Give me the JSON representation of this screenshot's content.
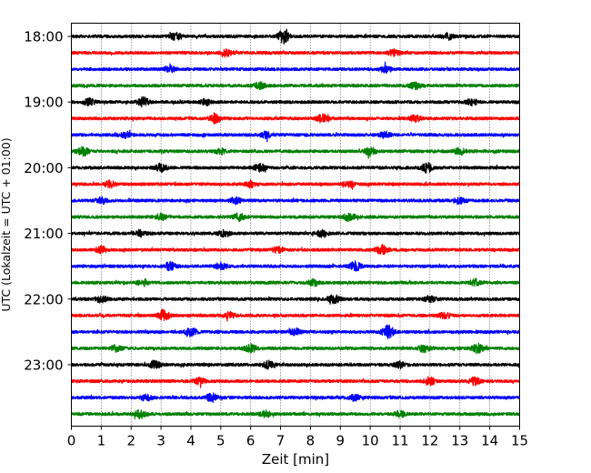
{
  "chart_data": {
    "type": "line",
    "title": "",
    "xlabel": "Zeit  [min]",
    "ylabel": "UTC (Lokalzeit = UTC + 01:00)",
    "xlim": [
      0,
      15
    ],
    "x_ticks": [
      "0",
      "1",
      "2",
      "3",
      "4",
      "5",
      "6",
      "7",
      "8",
      "9",
      "10",
      "11",
      "12",
      "13",
      "14",
      "15"
    ],
    "y_ticks": [
      {
        "label": "18:00",
        "row": 0
      },
      {
        "label": "19:00",
        "row": 4
      },
      {
        "label": "20:00",
        "row": 8
      },
      {
        "label": "21:00",
        "row": 12
      },
      {
        "label": "22:00",
        "row": 16
      },
      {
        "label": "23:00",
        "row": 20
      }
    ],
    "grid": "vertical dotted",
    "row_minutes": 15,
    "row_colors": [
      "#000000",
      "#ff0000",
      "#0000ff",
      "#008000"
    ],
    "traces": [
      {
        "start": "18:00",
        "bursts": [
          {
            "t": 7.1,
            "a": 7
          },
          {
            "t": 3.5,
            "a": 3.5
          },
          {
            "t": 12.6,
            "a": 3
          }
        ]
      },
      {
        "start": "18:15",
        "bursts": [
          {
            "t": 5.2,
            "a": 3
          },
          {
            "t": 10.8,
            "a": 3
          }
        ]
      },
      {
        "start": "18:30",
        "bursts": [
          {
            "t": 3.3,
            "a": 3
          },
          {
            "t": 10.5,
            "a": 3
          }
        ]
      },
      {
        "start": "18:45",
        "bursts": [
          {
            "t": 6.3,
            "a": 3
          },
          {
            "t": 11.5,
            "a": 3.5
          }
        ]
      },
      {
        "start": "19:00",
        "bursts": [
          {
            "t": 2.4,
            "a": 4.5
          },
          {
            "t": 0.6,
            "a": 3.5
          },
          {
            "t": 4.5,
            "a": 3
          },
          {
            "t": 13.4,
            "a": 3
          }
        ]
      },
      {
        "start": "19:15",
        "bursts": [
          {
            "t": 4.8,
            "a": 5
          },
          {
            "t": 8.4,
            "a": 4
          },
          {
            "t": 11.5,
            "a": 3
          }
        ]
      },
      {
        "start": "19:30",
        "bursts": [
          {
            "t": 1.8,
            "a": 3
          },
          {
            "t": 10.5,
            "a": 3
          },
          {
            "t": 6.5,
            "a": 3
          }
        ]
      },
      {
        "start": "19:45",
        "bursts": [
          {
            "t": 0.4,
            "a": 4
          },
          {
            "t": 10.0,
            "a": 4
          },
          {
            "t": 5.0,
            "a": 3
          },
          {
            "t": 13.0,
            "a": 3
          }
        ]
      },
      {
        "start": "20:00",
        "bursts": [
          {
            "t": 3.0,
            "a": 4
          },
          {
            "t": 11.9,
            "a": 4.5
          },
          {
            "t": 6.3,
            "a": 4
          }
        ]
      },
      {
        "start": "20:15",
        "bursts": [
          {
            "t": 6.0,
            "a": 3
          },
          {
            "t": 1.3,
            "a": 3
          },
          {
            "t": 9.3,
            "a": 3
          }
        ]
      },
      {
        "start": "20:30",
        "bursts": [
          {
            "t": 13.0,
            "a": 3.5
          },
          {
            "t": 1.0,
            "a": 3
          },
          {
            "t": 5.5,
            "a": 3
          }
        ]
      },
      {
        "start": "20:45",
        "bursts": [
          {
            "t": 9.3,
            "a": 4
          },
          {
            "t": 5.6,
            "a": 3.5
          },
          {
            "t": 3.0,
            "a": 3
          }
        ]
      },
      {
        "start": "21:00",
        "bursts": [
          {
            "t": 2.3,
            "a": 3
          },
          {
            "t": 8.4,
            "a": 3.5
          },
          {
            "t": 5.1,
            "a": 3
          }
        ]
      },
      {
        "start": "21:15",
        "bursts": [
          {
            "t": 10.4,
            "a": 4.5
          },
          {
            "t": 1.0,
            "a": 3
          },
          {
            "t": 6.9,
            "a": 3
          }
        ]
      },
      {
        "start": "21:30",
        "bursts": [
          {
            "t": 3.3,
            "a": 4
          },
          {
            "t": 9.5,
            "a": 4.5
          },
          {
            "t": 5.0,
            "a": 3
          }
        ]
      },
      {
        "start": "21:45",
        "bursts": [
          {
            "t": 2.4,
            "a": 3
          },
          {
            "t": 13.5,
            "a": 3.5
          },
          {
            "t": 8.1,
            "a": 3
          }
        ]
      },
      {
        "start": "22:00",
        "bursts": [
          {
            "t": 8.8,
            "a": 4
          },
          {
            "t": 1.0,
            "a": 3
          },
          {
            "t": 12.0,
            "a": 3
          }
        ]
      },
      {
        "start": "22:15",
        "bursts": [
          {
            "t": 3.1,
            "a": 5
          },
          {
            "t": 12.5,
            "a": 3
          },
          {
            "t": 5.3,
            "a": 3
          }
        ]
      },
      {
        "start": "22:30",
        "bursts": [
          {
            "t": 10.6,
            "a": 7
          },
          {
            "t": 4.0,
            "a": 4
          },
          {
            "t": 7.5,
            "a": 3
          }
        ]
      },
      {
        "start": "22:45",
        "bursts": [
          {
            "t": 13.6,
            "a": 4.5
          },
          {
            "t": 6.0,
            "a": 4
          },
          {
            "t": 11.8,
            "a": 3.5
          },
          {
            "t": 1.5,
            "a": 3
          }
        ]
      },
      {
        "start": "23:00",
        "bursts": [
          {
            "t": 2.8,
            "a": 4
          },
          {
            "t": 6.6,
            "a": 3.5
          },
          {
            "t": 11.0,
            "a": 3
          }
        ]
      },
      {
        "start": "23:15",
        "bursts": [
          {
            "t": 12.0,
            "a": 4
          },
          {
            "t": 13.5,
            "a": 3.5
          },
          {
            "t": 4.3,
            "a": 3
          }
        ]
      },
      {
        "start": "23:30",
        "bursts": [
          {
            "t": 4.7,
            "a": 4
          },
          {
            "t": 2.5,
            "a": 3
          },
          {
            "t": 9.5,
            "a": 3
          }
        ]
      },
      {
        "start": "23:45",
        "bursts": [
          {
            "t": 2.3,
            "a": 4
          },
          {
            "t": 6.5,
            "a": 3
          },
          {
            "t": 11.0,
            "a": 3
          }
        ]
      }
    ]
  }
}
